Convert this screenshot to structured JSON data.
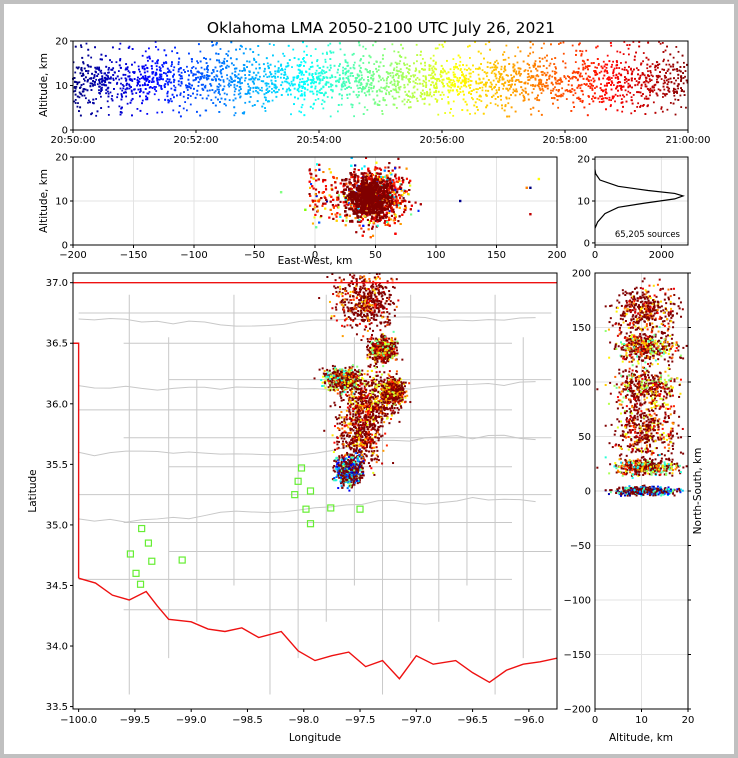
{
  "chart_data": [
    {
      "panel": "altitude-time",
      "type": "scatter",
      "title": "Oklahoma LMA 2050-2100 UTC July 26, 2021",
      "xlabel": "",
      "ylabel": "Altitude, km",
      "xtick_labels": [
        "20:50:00",
        "20:52:00",
        "20:54:00",
        "20:56:00",
        "20:58:00",
        "21:00:00"
      ],
      "xlim_minutes": [
        0,
        10
      ],
      "ylim": [
        0,
        20
      ],
      "yticks": [
        0,
        10,
        20
      ],
      "colormap": "jet (colored by time)",
      "altitude_typical": [
        6,
        16
      ]
    },
    {
      "panel": "altitude-eastwest",
      "type": "scatter",
      "xlabel": "East-West, km",
      "ylabel": "Altitude, km",
      "xlim": [
        -200,
        200
      ],
      "xticks": [
        -200,
        -150,
        -100,
        -50,
        0,
        50,
        100,
        150,
        200
      ],
      "ylim": [
        0,
        20
      ],
      "yticks": [
        0,
        10,
        20
      ],
      "main_cluster_x": [
        20,
        80
      ]
    },
    {
      "panel": "altitude-histogram",
      "type": "line",
      "xlim": [
        0,
        2800
      ],
      "xticks": [
        0,
        2000
      ],
      "ylim": [
        -0.5,
        20.5
      ],
      "yticks": [
        0,
        10,
        20
      ],
      "annotation": "65,205 sources",
      "profile": [
        {
          "alt": 3.5,
          "count": 0
        },
        {
          "alt": 5,
          "count": 80
        },
        {
          "alt": 7,
          "count": 300
        },
        {
          "alt": 8.5,
          "count": 700
        },
        {
          "alt": 9.5,
          "count": 1500
        },
        {
          "alt": 10.5,
          "count": 2400
        },
        {
          "alt": 11.2,
          "count": 2650
        },
        {
          "alt": 11.8,
          "count": 2400
        },
        {
          "alt": 12.5,
          "count": 1600
        },
        {
          "alt": 13.5,
          "count": 700
        },
        {
          "alt": 15,
          "count": 150
        },
        {
          "alt": 16.5,
          "count": 20
        },
        {
          "alt": 17.5,
          "count": 0
        }
      ]
    },
    {
      "panel": "plan-view",
      "type": "scatter",
      "xlabel": "Longitude",
      "ylabel": "Latitude",
      "xlim": [
        -100.05,
        -95.75
      ],
      "xticks": [
        -100.0,
        -99.5,
        -99.0,
        -98.5,
        -98.0,
        -97.5,
        -97.0,
        -96.5,
        -96.0
      ],
      "xtick_labels": [
        "−100.0",
        "−99.5",
        "−99.0",
        "−98.5",
        "−98.0",
        "−97.5",
        "−97.0",
        "−96.5",
        "−96.0"
      ],
      "ylim": [
        33.48,
        37.08
      ],
      "yticks": [
        33.5,
        34.0,
        34.5,
        35.0,
        35.5,
        36.0,
        36.5,
        37.0
      ],
      "ytick_labels": [
        "33.5",
        "34.0",
        "34.5",
        "35.0",
        "35.5",
        "36.0",
        "36.5",
        "37.0"
      ],
      "stations": [
        [
          -99.44,
          34.97
        ],
        [
          -99.38,
          34.85
        ],
        [
          -99.54,
          34.76
        ],
        [
          -99.35,
          34.7
        ],
        [
          -99.49,
          34.6
        ],
        [
          -99.45,
          34.51
        ],
        [
          -99.08,
          34.71
        ],
        [
          -98.02,
          35.47
        ],
        [
          -98.05,
          35.36
        ],
        [
          -97.94,
          35.28
        ],
        [
          -98.08,
          35.25
        ],
        [
          -97.98,
          35.13
        ],
        [
          -97.94,
          35.01
        ],
        [
          -97.76,
          35.14
        ],
        [
          -97.5,
          35.13
        ]
      ]
    },
    {
      "panel": "northsouth-altitude",
      "type": "scatter",
      "xlabel": "Altitude, km",
      "ylabel": "North-South, km",
      "xlim": [
        0,
        20
      ],
      "xticks": [
        0,
        10,
        20
      ],
      "ylim": [
        -200,
        200
      ],
      "yticks": [
        -200,
        -150,
        -100,
        -50,
        0,
        50,
        100,
        150,
        200
      ]
    }
  ]
}
